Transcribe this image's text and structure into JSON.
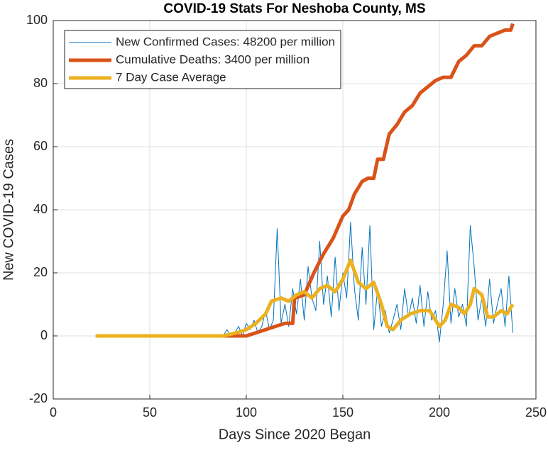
{
  "chart_data": {
    "type": "line",
    "title": "COVID-19 Stats For Neshoba County, MS",
    "xlabel": "Days Since 2020 Began",
    "ylabel": "New COVID-19 Cases",
    "xlim": [
      0,
      250
    ],
    "xticks": [
      0,
      50,
      100,
      150,
      200,
      250
    ],
    "ylim": [
      -20,
      100
    ],
    "yticks": [
      -20,
      0,
      20,
      40,
      60,
      80,
      100
    ],
    "grid": true,
    "legend": "northwest",
    "series": [
      {
        "name": "New Confirmed Cases: 48200 per million",
        "color": "#0072BD",
        "line_width": 1,
        "x": [
          88,
          90,
          92,
          94,
          96,
          98,
          100,
          102,
          104,
          106,
          108,
          110,
          112,
          114,
          116,
          118,
          120,
          122,
          124,
          126,
          128,
          130,
          132,
          134,
          136,
          138,
          140,
          142,
          144,
          146,
          148,
          150,
          152,
          154,
          156,
          158,
          160,
          162,
          164,
          166,
          168,
          170,
          172,
          174,
          176,
          178,
          180,
          182,
          184,
          186,
          188,
          190,
          192,
          194,
          196,
          198,
          200,
          202,
          204,
          206,
          208,
          210,
          212,
          214,
          216,
          218,
          220,
          222,
          224,
          226,
          228,
          230,
          232,
          234,
          236,
          238
        ],
        "values": [
          0,
          2,
          0,
          1,
          3,
          0,
          4,
          2,
          5,
          1,
          3,
          8,
          2,
          5,
          34,
          4,
          10,
          3,
          15,
          7,
          18,
          5,
          22,
          12,
          8,
          30,
          10,
          19,
          6,
          25,
          8,
          20,
          12,
          36,
          15,
          5,
          28,
          10,
          35,
          2,
          15,
          3,
          8,
          1,
          5,
          10,
          2,
          15,
          6,
          12,
          4,
          16,
          3,
          14,
          5,
          8,
          -2,
          10,
          27,
          4,
          15,
          6,
          10,
          3,
          35,
          22,
          5,
          12,
          3,
          18,
          4,
          10,
          15,
          3,
          19,
          1
        ]
      },
      {
        "name": "Cumulative Deaths: 3400 per million",
        "color": "#D95319",
        "line_width": 5,
        "x": [
          22,
          88,
          100,
          105,
          110,
          115,
          120,
          124,
          125,
          130,
          135,
          140,
          145,
          150,
          153,
          156,
          160,
          163,
          166,
          168,
          171,
          174,
          178,
          182,
          186,
          190,
          194,
          198,
          202,
          206,
          210,
          214,
          218,
          222,
          226,
          230,
          234,
          237,
          238
        ],
        "values": [
          0,
          0,
          0,
          1,
          2,
          3,
          4,
          4,
          12,
          13,
          20,
          26,
          31,
          38,
          40,
          45,
          49,
          50,
          50,
          56,
          56,
          64,
          67,
          71,
          73,
          77,
          79,
          81,
          82,
          82,
          87,
          89,
          92,
          92,
          95,
          96,
          97,
          97,
          99
        ]
      },
      {
        "name": "7 Day Case Average",
        "color": "#EDB120",
        "line_width": 5,
        "x": [
          22,
          88,
          95,
          100,
          105,
          110,
          113,
          118,
          122,
          126,
          130,
          134,
          138,
          142,
          146,
          150,
          154,
          158,
          162,
          166,
          170,
          173,
          176,
          180,
          185,
          190,
          195,
          200,
          203,
          206,
          210,
          213,
          216,
          218,
          222,
          225,
          228,
          232,
          235,
          238
        ],
        "values": [
          0,
          0,
          1,
          2,
          4,
          7,
          11,
          12,
          11,
          13,
          14,
          12,
          15,
          16,
          14,
          18,
          24,
          17,
          15,
          17,
          10,
          3,
          2,
          5,
          7,
          8,
          8,
          3,
          5,
          10,
          9,
          7,
          10,
          15,
          13,
          6,
          6,
          8,
          7,
          10
        ]
      }
    ]
  }
}
